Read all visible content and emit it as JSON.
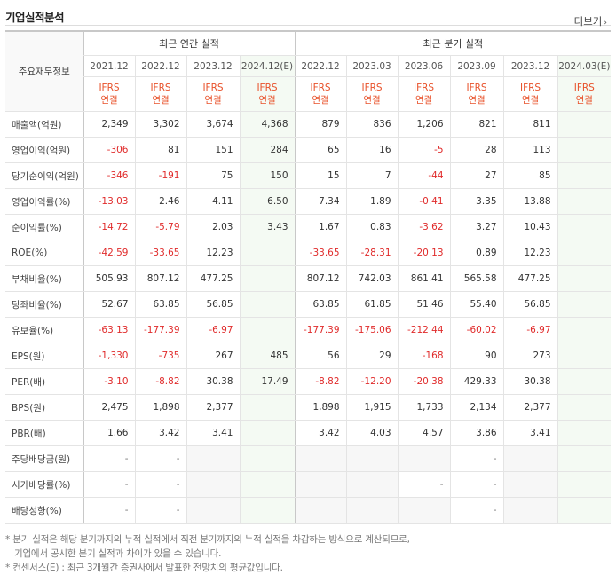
{
  "section_title": "기업실적분석",
  "more_label": "더보기",
  "more_arrow": "›",
  "header": {
    "label": "주요재무정보",
    "annual_group": "최근 연간 실적",
    "quarterly_group": "최근 분기 실적",
    "annual_periods": [
      "2021.12",
      "2022.12",
      "2023.12",
      "2024.12(E)"
    ],
    "quarterly_periods": [
      "2022.12",
      "2023.03",
      "2023.06",
      "2023.09",
      "2023.12",
      "2024.03(E)"
    ],
    "ifrs_line1": "IFRS",
    "ifrs_line2": "연결"
  },
  "rows": [
    {
      "label": "매출액(억원)",
      "annual": [
        "2,349",
        "3,302",
        "3,674",
        "4,368"
      ],
      "quarterly": [
        "879",
        "836",
        "1,206",
        "821",
        "811",
        ""
      ]
    },
    {
      "label": "영업이익(억원)",
      "annual": [
        "-306",
        "81",
        "151",
        "284"
      ],
      "quarterly": [
        "65",
        "16",
        "-5",
        "28",
        "113",
        ""
      ]
    },
    {
      "label": "당기순이익(억원)",
      "annual": [
        "-346",
        "-191",
        "75",
        "150"
      ],
      "quarterly": [
        "15",
        "7",
        "-44",
        "27",
        "85",
        ""
      ]
    },
    {
      "label": "영업이익률(%)",
      "annual": [
        "-13.03",
        "2.46",
        "4.11",
        "6.50"
      ],
      "quarterly": [
        "7.34",
        "1.89",
        "-0.41",
        "3.35",
        "13.88",
        ""
      ]
    },
    {
      "label": "순이익률(%)",
      "annual": [
        "-14.72",
        "-5.79",
        "2.03",
        "3.43"
      ],
      "quarterly": [
        "1.67",
        "0.83",
        "-3.62",
        "3.27",
        "10.43",
        ""
      ]
    },
    {
      "label": "ROE(%)",
      "annual": [
        "-42.59",
        "-33.65",
        "12.23",
        ""
      ],
      "quarterly": [
        "-33.65",
        "-28.31",
        "-20.13",
        "0.89",
        "12.23",
        ""
      ]
    },
    {
      "label": "부채비율(%)",
      "annual": [
        "505.93",
        "807.12",
        "477.25",
        ""
      ],
      "quarterly": [
        "807.12",
        "742.03",
        "861.41",
        "565.58",
        "477.25",
        ""
      ]
    },
    {
      "label": "당좌비율(%)",
      "annual": [
        "52.67",
        "63.85",
        "56.85",
        ""
      ],
      "quarterly": [
        "63.85",
        "61.85",
        "51.46",
        "55.40",
        "56.85",
        ""
      ]
    },
    {
      "label": "유보율(%)",
      "annual": [
        "-63.13",
        "-177.39",
        "-6.97",
        ""
      ],
      "quarterly": [
        "-177.39",
        "-175.06",
        "-212.44",
        "-60.02",
        "-6.97",
        ""
      ]
    },
    {
      "label": "EPS(원)",
      "annual": [
        "-1,330",
        "-735",
        "267",
        "485"
      ],
      "quarterly": [
        "56",
        "29",
        "-168",
        "90",
        "273",
        ""
      ]
    },
    {
      "label": "PER(배)",
      "annual": [
        "-3.10",
        "-8.82",
        "30.38",
        "17.49"
      ],
      "quarterly": [
        "-8.82",
        "-12.20",
        "-20.38",
        "429.33",
        "30.38",
        ""
      ]
    },
    {
      "label": "BPS(원)",
      "annual": [
        "2,475",
        "1,898",
        "2,377",
        ""
      ],
      "quarterly": [
        "1,898",
        "1,915",
        "1,733",
        "2,134",
        "2,377",
        ""
      ]
    },
    {
      "label": "PBR(배)",
      "annual": [
        "1.66",
        "3.42",
        "3.41",
        ""
      ],
      "quarterly": [
        "3.42",
        "4.03",
        "4.57",
        "3.86",
        "3.41",
        ""
      ]
    },
    {
      "label": "주당배당금(원)",
      "annual": [
        "-",
        "-",
        "",
        ""
      ],
      "quarterly": [
        "",
        "",
        "",
        "-",
        "",
        ""
      ]
    },
    {
      "label": "시가배당률(%)",
      "annual": [
        "-",
        "-",
        "",
        ""
      ],
      "quarterly": [
        "",
        "",
        "-",
        "-",
        "",
        ""
      ]
    },
    {
      "label": "배당성향(%)",
      "annual": [
        "-",
        "-",
        "",
        ""
      ],
      "quarterly": [
        "",
        "",
        "",
        "-",
        "",
        ""
      ]
    }
  ],
  "footnotes": [
    "* 분기 실적은 해당 분기까지의 누적 실적에서 직전 분기까지의 누적 실적을 차감하는 방식으로 계산되므로,",
    "기업에서 공시한 분기 실적과 차이가 있을 수 있습니다.",
    "* 컨센서스(E) : 최근 3개월간 증권사에서 발표한 전망치의 평균값입니다."
  ],
  "colors": {
    "negative": "#e02b2b",
    "ifrs": "#e8512a",
    "estimate_bg": "#f4faf3"
  }
}
